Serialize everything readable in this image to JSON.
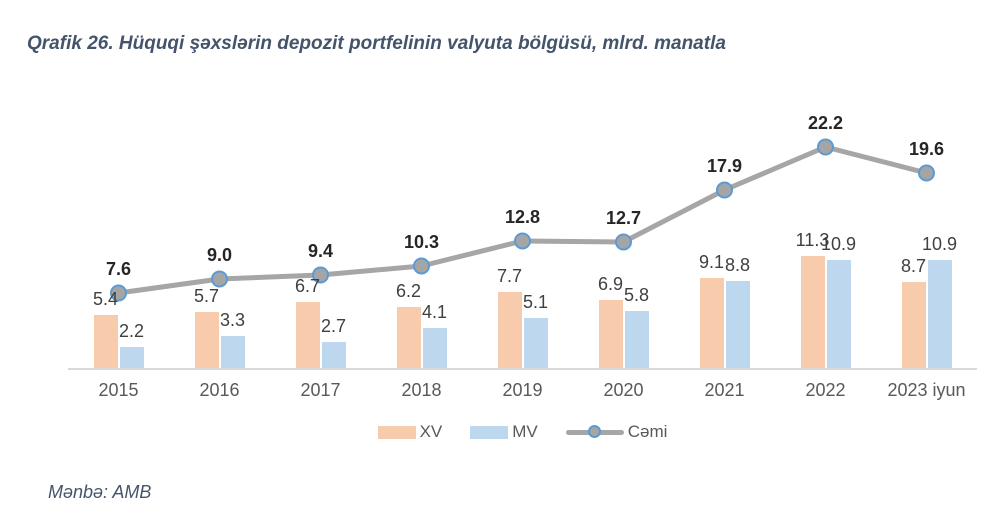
{
  "title": "Qrafik 26. Hüquqi şəxslərin depozit portfelinin valyuta bölgüsü, mlrd. manatla",
  "source": "Mənbə: AMB",
  "colors": {
    "title": "#44546A",
    "bar_label": "#404040",
    "line_label": "#262626",
    "axis_label": "#595959",
    "axis_line": "#D9D9D9",
    "background": "#FFFFFF",
    "xv_bar": "#F8CBAD",
    "mv_bar": "#BDD7EE",
    "total_line": "#A6A6A6",
    "marker_fill": "#A5A5A5",
    "marker_border": "#5B9BD5"
  },
  "legend": {
    "items": [
      {
        "label": "XV",
        "swatch": "bar",
        "color": "#F8CBAD"
      },
      {
        "label": "MV",
        "swatch": "bar",
        "color": "#BDD7EE"
      },
      {
        "label": "Cəmi",
        "swatch": "line",
        "color": "#A6A6A6",
        "marker_fill": "#A5A5A5",
        "marker_border": "#5B9BD5"
      }
    ],
    "position": "bottom"
  },
  "chart_data": {
    "type": "bar",
    "subtype": "grouped bars with total line overlay",
    "title": "Qrafik 26. Hüquqi şəxslərin depozit portfelinin valyuta bölgüsü, mlrd. manatla",
    "categories": [
      "2015",
      "2016",
      "2017",
      "2018",
      "2019",
      "2020",
      "2021",
      "2022",
      "2023 iyun"
    ],
    "series": [
      {
        "name": "XV",
        "chart_type": "bar",
        "color": "#F8CBAD",
        "values": [
          5.4,
          5.7,
          6.7,
          6.2,
          7.7,
          6.9,
          9.1,
          11.3,
          8.7
        ]
      },
      {
        "name": "MV",
        "chart_type": "bar",
        "color": "#BDD7EE",
        "values": [
          2.2,
          3.3,
          2.7,
          4.1,
          5.1,
          5.8,
          8.8,
          10.9,
          10.9
        ]
      },
      {
        "name": "Cəmi",
        "chart_type": "line",
        "color": "#A6A6A6",
        "marker_fill": "#A5A5A5",
        "marker_border": "#5B9BD5",
        "values": [
          7.6,
          9.0,
          9.4,
          10.3,
          12.8,
          12.7,
          17.9,
          22.2,
          19.6
        ]
      }
    ],
    "xlabel": "",
    "ylabel": "",
    "ylim": [
      0,
      24
    ],
    "grid": false,
    "y_axis_visible": false,
    "value_labels": "one decimal, above bars and above line markers",
    "legend_position": "bottom"
  }
}
